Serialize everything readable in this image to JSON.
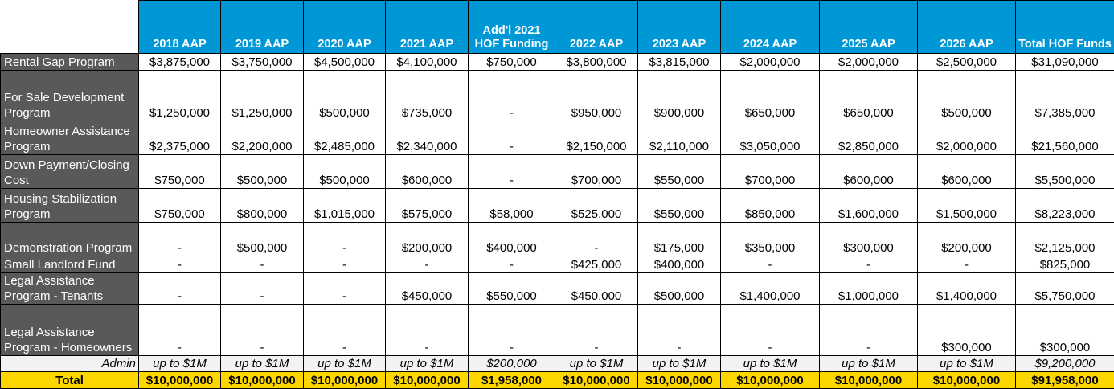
{
  "table": {
    "columns": [
      "2018 AAP",
      "2019 AAP",
      "2020 AAP",
      "2021 AAP",
      "Add'l 2021 HOF Funding",
      "2022 AAP",
      "2023 AAP",
      "2024 AAP",
      "2025 AAP",
      "2026 AAP",
      "Total HOF Funds"
    ],
    "rows": [
      {
        "label": "Rental Gap Program",
        "values": [
          "$3,875,000",
          "$3,750,000",
          "$4,500,000",
          "$4,100,000",
          "$750,000",
          "$3,800,000",
          "$3,815,000",
          "$2,000,000",
          "$2,000,000",
          "$2,500,000",
          "$31,090,000"
        ]
      },
      {
        "label": "For Sale Development Program",
        "values": [
          "$1,250,000",
          "$1,250,000",
          "$500,000",
          "$735,000",
          "-",
          "$950,000",
          "$900,000",
          "$650,000",
          "$650,000",
          "$500,000",
          "$7,385,000"
        ]
      },
      {
        "label": "Homeowner Assistance Program",
        "values": [
          "$2,375,000",
          "$2,200,000",
          "$2,485,000",
          "$2,340,000",
          "-",
          "$2,150,000",
          "$2,110,000",
          "$3,050,000",
          "$2,850,000",
          "$2,000,000",
          "$21,560,000"
        ]
      },
      {
        "label": "Down Payment/Closing Cost",
        "values": [
          "$750,000",
          "$500,000",
          "$500,000",
          "$600,000",
          "-",
          "$700,000",
          "$550,000",
          "$700,000",
          "$600,000",
          "$600,000",
          "$5,500,000"
        ]
      },
      {
        "label": "Housing Stabilization Program",
        "values": [
          "$750,000",
          "$800,000",
          "$1,015,000",
          "$575,000",
          "$58,000",
          "$525,000",
          "$550,000",
          "$850,000",
          "$1,600,000",
          "$1,500,000",
          "$8,223,000"
        ]
      },
      {
        "label": "Demonstration Program",
        "values": [
          "-",
          "$500,000",
          "-",
          "$200,000",
          "$400,000",
          "-",
          "$175,000",
          "$350,000",
          "$300,000",
          "$200,000",
          "$2,125,000"
        ]
      },
      {
        "label": "Small Landlord Fund",
        "values": [
          "-",
          "-",
          "-",
          "-",
          "-",
          "$425,000",
          "$400,000",
          "-",
          "-",
          "-",
          "$825,000"
        ]
      },
      {
        "label": "Legal Assistance Program - Tenants",
        "values": [
          "-",
          "-",
          "-",
          "$450,000",
          "$550,000",
          "$450,000",
          "$500,000",
          "$1,400,000",
          "$1,000,000",
          "$1,400,000",
          "$5,750,000"
        ]
      },
      {
        "label": "Legal Assistance Program - Homeowners",
        "values": [
          "-",
          "-",
          "-",
          "-",
          "-",
          "-",
          "-",
          "-",
          "-",
          "$300,000",
          "$300,000"
        ]
      }
    ],
    "admin": {
      "label": "Admin",
      "values": [
        "up to $1M",
        "up to $1M",
        "up to $1M",
        "up to $1M",
        "$200,000",
        "up to $1M",
        "up to $1M",
        "up to $1M",
        "up to $1M",
        "up to $1M",
        "$9,200,000"
      ]
    },
    "total": {
      "label": "Total",
      "values": [
        "$10,000,000",
        "$10,000,000",
        "$10,000,000",
        "$10,000,000",
        "$1,958,000",
        "$10,000,000",
        "$10,000,000",
        "$10,000,000",
        "$10,000,000",
        "$10,000,000",
        "$91,958,000"
      ]
    }
  }
}
